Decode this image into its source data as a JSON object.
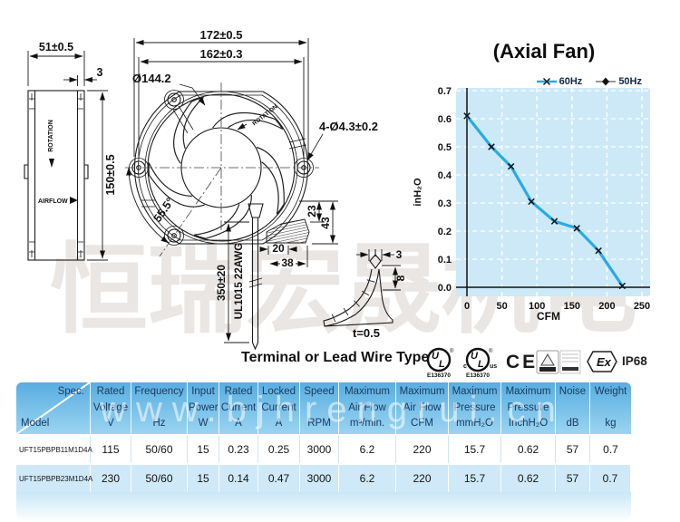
{
  "watermark": {
    "cn": "恒瑞宏晟机电",
    "url": "www.bjhrengrui.cn"
  },
  "drawing": {
    "side_view": {
      "width_dim": "51±0.5",
      "flange_dim": "3",
      "height_dim": "150±0.5",
      "rotation_label": "ROTATION",
      "airflow_label": "AIRFLOW"
    },
    "front_view": {
      "outer_dim": "172±0.5",
      "hole_spacing_dim": "162±0.3",
      "impeller_dia": "Ø144.2",
      "hole_callout": "4-Ø4.3±0.2",
      "angle_dim": "55.5°",
      "rotation_label": "ROTATION",
      "dim_23": "23",
      "dim_43": "43",
      "dim_20": "20",
      "dim_38": "38",
      "lead_length": "350±20",
      "lead_spec": "UL1015 22AWG"
    },
    "terminal_detail": {
      "dim_3": "3",
      "dim_8": "8",
      "thickness": "t=0.5"
    },
    "caption": "Terminal or Lead Wire Type"
  },
  "chart_data": {
    "type": "line",
    "title": "(Axial Fan)",
    "xlabel": "CFM",
    "ylabel": "inH₂O",
    "xlim": [
      0,
      250
    ],
    "ylim": [
      0,
      0.7
    ],
    "xticks": [
      "0",
      "50",
      "100",
      "150",
      "200",
      "250"
    ],
    "yticks": [
      "0.0",
      "0.1",
      "0.2",
      "0.3",
      "0.4",
      "0.5",
      "0.6",
      "0.7"
    ],
    "grid": true,
    "plot_bg": "#cde9f7",
    "legend": [
      {
        "name": "60Hz",
        "color": "#29abe2",
        "marker": "x"
      },
      {
        "name": "50Hz",
        "color": "#999999",
        "marker": "diamond"
      }
    ],
    "series": [
      {
        "name": "60Hz",
        "x": [
          0,
          35,
          63,
          92,
          125,
          157,
          188,
          222
        ],
        "y": [
          0.61,
          0.5,
          0.43,
          0.305,
          0.235,
          0.21,
          0.13,
          0.005
        ]
      }
    ]
  },
  "certifications": {
    "ul_file": "E136370",
    "cul_file": "E136370",
    "ce": "CE",
    "ex": "Ex",
    "ip": "IP68"
  },
  "table": {
    "corner": {
      "top": "Spec.",
      "bottom": "Model"
    },
    "columns": [
      {
        "l1": "Rated",
        "l2": "Voltage",
        "unit": "V"
      },
      {
        "l1": "Frequency",
        "l2": "",
        "unit": "Hz"
      },
      {
        "l1": "Input",
        "l2": "Power",
        "unit": "W"
      },
      {
        "l1": "Rated",
        "l2": "Current",
        "unit": "A"
      },
      {
        "l1": "Locked",
        "l2": "Current",
        "unit": "A"
      },
      {
        "l1": "Speed",
        "l2": "",
        "unit": "RPM"
      },
      {
        "l1": "Maximum",
        "l2": "Air Flow",
        "unit": "m³/min."
      },
      {
        "l1": "Maximum",
        "l2": "Air Flow",
        "unit": "CFM"
      },
      {
        "l1": "Maximum",
        "l2": "Pressure",
        "unit": "mmH₂O"
      },
      {
        "l1": "Maximum",
        "l2": "Pressure",
        "unit": "InchH₂O"
      },
      {
        "l1": "Noise",
        "l2": "",
        "unit": "dB"
      },
      {
        "l1": "Weight",
        "l2": "",
        "unit": "kg"
      }
    ],
    "rows": [
      [
        "UFT15PBPB11M1D4A",
        "115",
        "50/60",
        "15",
        "0.23",
        "0.25",
        "3000",
        "6.2",
        "220",
        "15.7",
        "0.62",
        "57",
        "0.7"
      ],
      [
        "UFT15PBPB23M1D4A",
        "230",
        "50/60",
        "15",
        "0.14",
        "0.47",
        "3000",
        "6.2",
        "220",
        "15.7",
        "0.62",
        "57",
        "0.7"
      ]
    ]
  },
  "colors": {
    "curve_60hz": "#29abe2",
    "plot_bg": "#cde9f7",
    "table_header_top": "#58ade1",
    "table_header_bottom": "#9bd4f1",
    "row_alt": "#cfe9f8",
    "watermark_gray": "#eae6e3"
  }
}
